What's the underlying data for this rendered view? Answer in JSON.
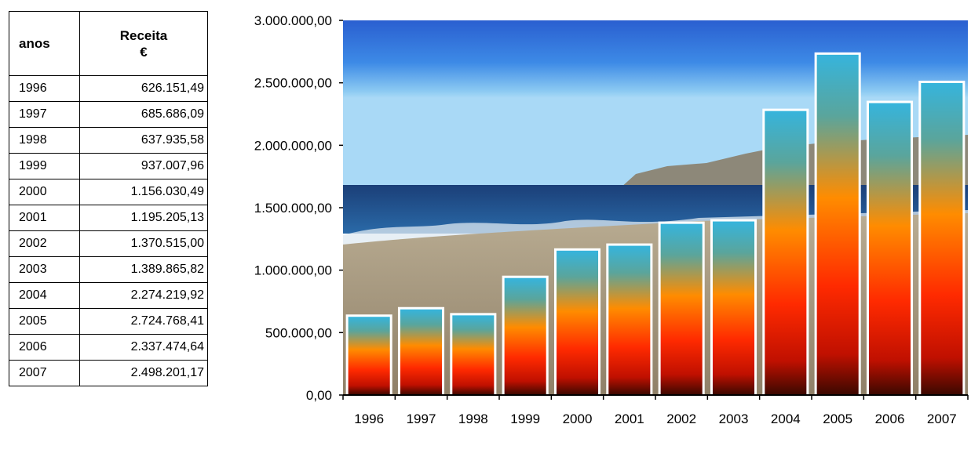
{
  "table": {
    "headers": {
      "year": "anos",
      "revenue": "Receita",
      "unit": "€"
    },
    "rows": [
      {
        "year": "1996",
        "value": "626.151,49"
      },
      {
        "year": "1997",
        "value": "685.686,09"
      },
      {
        "year": "1998",
        "value": "637.935,58"
      },
      {
        "year": "1999",
        "value": "937.007,96"
      },
      {
        "year": "2000",
        "value": "1.156.030,49"
      },
      {
        "year": "2001",
        "value": "1.195.205,13"
      },
      {
        "year": "2002",
        "value": "1.370.515,00"
      },
      {
        "year": "2003",
        "value": "1.389.865,82"
      },
      {
        "year": "2004",
        "value": "2.274.219,92"
      },
      {
        "year": "2005",
        "value": "2.724.768,41"
      },
      {
        "year": "2006",
        "value": "2.337.474,64"
      },
      {
        "year": "2007",
        "value": "2.498.201,17"
      }
    ]
  },
  "chart_data": {
    "type": "bar",
    "categories": [
      "1996",
      "1997",
      "1998",
      "1999",
      "2000",
      "2001",
      "2002",
      "2003",
      "2004",
      "2005",
      "2006",
      "2007"
    ],
    "values": [
      626151.49,
      685686.09,
      637935.58,
      937007.96,
      1156030.49,
      1195205.13,
      1370515.0,
      1389865.82,
      2274219.92,
      2724768.41,
      2337474.64,
      2498201.17
    ],
    "ylim": [
      0,
      3000000
    ],
    "yticks": [
      0,
      500000,
      1000000,
      1500000,
      2000000,
      2500000,
      3000000
    ],
    "ytick_labels": [
      "0,00",
      "500.000,00",
      "1.000.000,00",
      "1.500.000,00",
      "2.000.000,00",
      "2.500.000,00",
      "3.000.000,00"
    ],
    "title": "",
    "xlabel": "",
    "ylabel": "",
    "grid": false,
    "legend": "none",
    "colors": {
      "bar_top": "#3aaed6",
      "bar_middle": "#ff8a00",
      "bar_lower": "#ff2a00",
      "bar_bottom": "#3a0800",
      "bar_frame": "#ffffff",
      "sky_top": "#1a5ed8",
      "sky_horizon": "#9fd3f5",
      "sea": "#1f4f8a",
      "sand": "#a89a80"
    }
  }
}
